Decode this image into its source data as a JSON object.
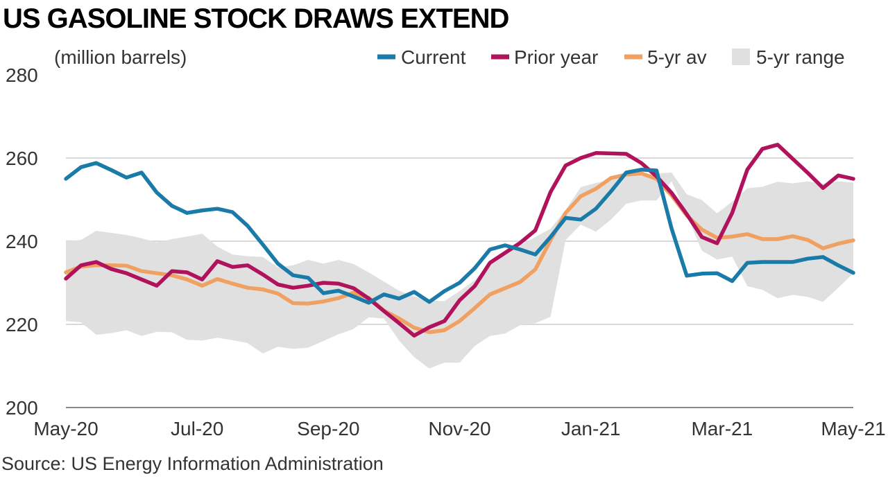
{
  "title": "US GASOLINE STOCK DRAWS EXTEND",
  "source": "Source: US Energy Information Administration",
  "chart_data": {
    "type": "line",
    "title": "US GASOLINE STOCK DRAWS EXTEND",
    "ylabel": "(million barrels)",
    "ylim": [
      200,
      280
    ],
    "yticks": [
      200,
      220,
      240,
      260,
      280
    ],
    "xticks": [
      "May-20",
      "Jul-20",
      "Sep-20",
      "Nov-20",
      "Jan-21",
      "Mar-21",
      "May-21"
    ],
    "grid": true,
    "legend_position": "top-right",
    "legend": [
      {
        "label": "Current",
        "color": "#1a7aa8",
        "kind": "line"
      },
      {
        "label": "Prior year",
        "color": "#b0125b",
        "kind": "line"
      },
      {
        "label": "5-yr av",
        "color": "#f0a060",
        "kind": "line"
      },
      {
        "label": "5-yr range",
        "color": "#e0e0e0",
        "kind": "area"
      }
    ],
    "x": [
      "2020-05-01",
      "2020-05-08",
      "2020-05-15",
      "2020-05-22",
      "2020-05-29",
      "2020-06-05",
      "2020-06-12",
      "2020-06-19",
      "2020-06-26",
      "2020-07-03",
      "2020-07-10",
      "2020-07-17",
      "2020-07-24",
      "2020-07-31",
      "2020-08-07",
      "2020-08-14",
      "2020-08-21",
      "2020-08-28",
      "2020-09-04",
      "2020-09-11",
      "2020-09-18",
      "2020-09-25",
      "2020-10-02",
      "2020-10-09",
      "2020-10-16",
      "2020-10-23",
      "2020-10-30",
      "2020-11-06",
      "2020-11-13",
      "2020-11-20",
      "2020-11-27",
      "2020-12-04",
      "2020-12-11",
      "2020-12-18",
      "2020-12-25",
      "2021-01-01",
      "2021-01-08",
      "2021-01-15",
      "2021-01-22",
      "2021-01-29",
      "2021-02-05",
      "2021-02-12",
      "2021-02-19",
      "2021-02-26",
      "2021-03-05",
      "2021-03-12",
      "2021-03-19",
      "2021-03-26",
      "2021-04-02",
      "2021-04-09",
      "2021-04-16",
      "2021-04-23",
      "2021-04-30"
    ],
    "series": [
      {
        "name": "Current",
        "color": "#1a7aa8",
        "values": [
          255,
          257.8,
          258.8,
          257.1,
          255.3,
          256.5,
          251.7,
          248.5,
          246.8,
          247.4,
          247.8,
          247,
          243.7,
          239.2,
          234.6,
          231.8,
          231.2,
          227.5,
          228.1,
          226.7,
          225.2,
          227.2,
          226.2,
          227.8,
          225.4,
          228,
          230,
          233.5,
          238,
          239,
          238,
          236.8,
          241,
          245.6,
          245.2,
          247.8,
          252,
          256.5,
          257.2,
          257,
          243,
          231.7,
          232.2,
          232.3,
          230.4,
          234.8,
          235,
          235,
          235,
          235.8,
          236.2,
          234.2,
          232.4
        ]
      },
      {
        "name": "Prior year",
        "color": "#b0125b",
        "values": [
          231,
          234.2,
          235,
          233.3,
          232.3,
          230.8,
          229.3,
          232.8,
          232.5,
          230.8,
          235.2,
          233.8,
          234.2,
          232,
          229.6,
          228.8,
          229.3,
          230,
          229.8,
          228.7,
          226.2,
          223.2,
          220.3,
          217.3,
          219.3,
          220.8,
          225.8,
          229.2,
          234.8,
          237.2,
          239.6,
          242.6,
          251.8,
          258.2,
          260,
          261.2,
          261.1,
          261,
          258.8,
          255.6,
          251.6,
          246.5,
          241,
          239.5,
          246.8,
          257.2,
          262.2,
          263.2,
          259.8,
          256.4,
          252.8,
          255.8,
          255
        ]
      },
      {
        "name": "5-yr av",
        "color": "#f0a060",
        "values": [
          232.5,
          233.9,
          234.2,
          234.2,
          234.1,
          232.8,
          232.3,
          231.8,
          230.8,
          229.3,
          230.9,
          229.8,
          228.8,
          228.4,
          227.4,
          225.1,
          225,
          225.5,
          226.3,
          227.6,
          226.4,
          223.3,
          221.4,
          219.2,
          218.1,
          218.6,
          220.8,
          223.9,
          227.2,
          228.7,
          230.2,
          233.2,
          240.2,
          246.8,
          250.8,
          252.6,
          255.2,
          256,
          256.3,
          255,
          251,
          246.2,
          242.8,
          240.8,
          241.1,
          241.7,
          240.5,
          240.5,
          241.2,
          240.3,
          238.3,
          239.4,
          240.2
        ]
      },
      {
        "name": "5-yr range high",
        "color": "#e0e0e0",
        "values": [
          240,
          240.3,
          242.5,
          242,
          241.5,
          240.7,
          239.7,
          240.5,
          241.1,
          241.8,
          238.7,
          236.8,
          236.4,
          236.2,
          233.7,
          234.2,
          235.5,
          234.6,
          235.5,
          234.5,
          232.5,
          230.3,
          228.1,
          226.7,
          225.7,
          225.6,
          228,
          230.6,
          234.9,
          236.7,
          239,
          241,
          243,
          247.5,
          253,
          254,
          254.8,
          255.5,
          256,
          256.3,
          256.5,
          251.3,
          249.9,
          246.7,
          249.5,
          252.7,
          253.1,
          254.3,
          253.9,
          254.4,
          253.8,
          254.4,
          254.1
        ]
      },
      {
        "name": "5-yr range low",
        "color": "#e0e0e0",
        "values": [
          220.8,
          220.5,
          217.5,
          217.9,
          218.6,
          217.2,
          218.2,
          218.1,
          216.3,
          216.1,
          216.8,
          216.2,
          215.5,
          213,
          214.6,
          214.1,
          214.4,
          216,
          217.6,
          218.9,
          221.7,
          221.4,
          216.1,
          212.1,
          209.4,
          210.8,
          210.8,
          214.8,
          217.2,
          217.8,
          219.8,
          220.3,
          221.8,
          240.3,
          244,
          242.3,
          245.2,
          249,
          249.8,
          249.8,
          254.4,
          246.4,
          237.7,
          235.6,
          236.3,
          229.2,
          228.3,
          226.3,
          227.1,
          226.6,
          225.4,
          228.8,
          232.3
        ]
      }
    ]
  }
}
